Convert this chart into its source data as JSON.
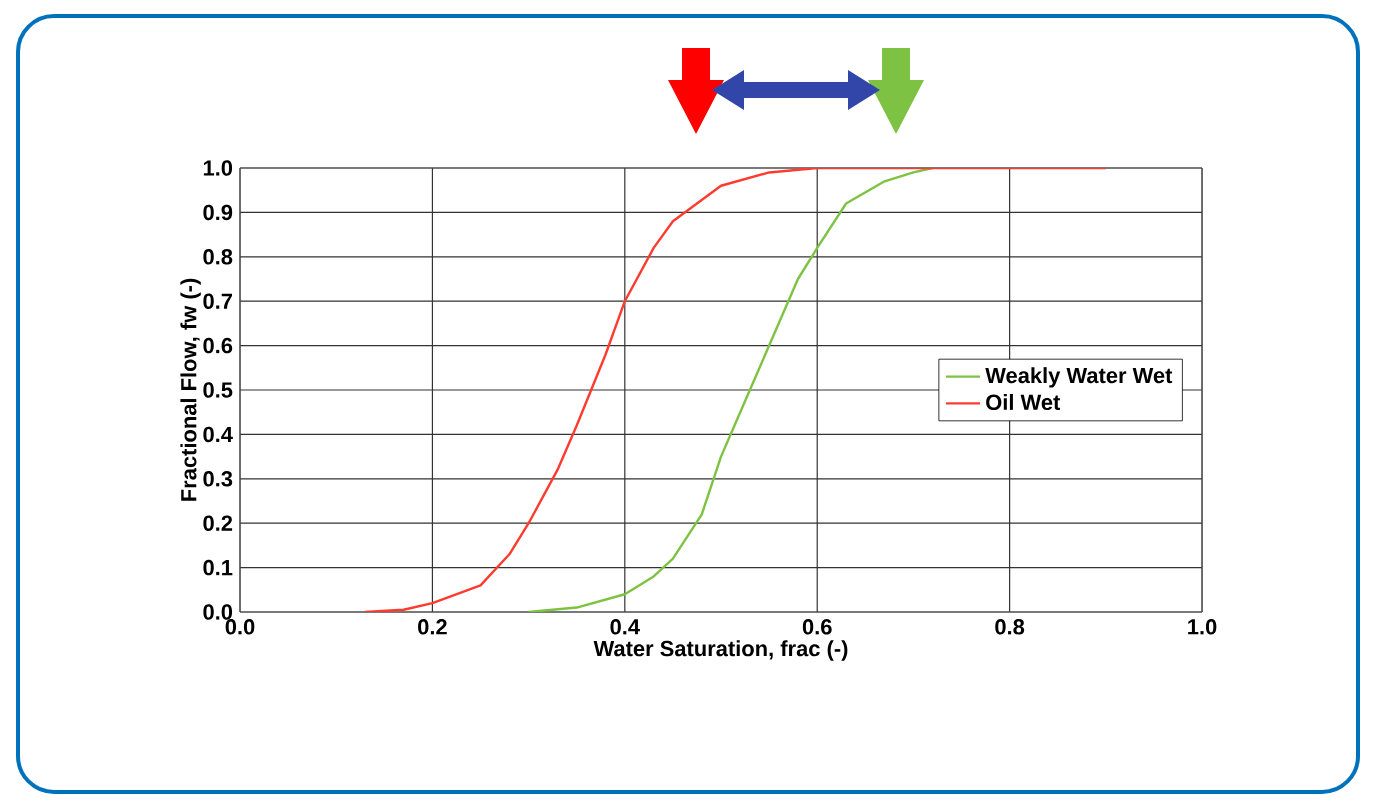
{
  "chart_data": {
    "type": "line",
    "xlabel": "Water Saturation, frac (-)",
    "ylabel": "Fractional Flow, fw (-)",
    "xlim": [
      0,
      1
    ],
    "ylim": [
      0,
      1
    ],
    "xticks": [
      {
        "value": 0,
        "label": "0.0"
      },
      {
        "value": 0.2,
        "label": "0.2"
      },
      {
        "value": 0.4,
        "label": "0.4"
      },
      {
        "value": 0.6,
        "label": "0.6"
      },
      {
        "value": 0.8,
        "label": "0.8"
      },
      {
        "value": 1,
        "label": "1.0"
      }
    ],
    "yticks": [
      {
        "value": 0,
        "label": "0.0"
      },
      {
        "value": 0.1,
        "label": "0.1"
      },
      {
        "value": 0.2,
        "label": "0.2"
      },
      {
        "value": 0.3,
        "label": "0.3"
      },
      {
        "value": 0.4,
        "label": "0.4"
      },
      {
        "value": 0.5,
        "label": "0.5"
      },
      {
        "value": 0.6,
        "label": "0.6"
      },
      {
        "value": 0.7,
        "label": "0.7"
      },
      {
        "value": 0.8,
        "label": "0.8"
      },
      {
        "value": 0.9,
        "label": "0.9"
      },
      {
        "value": 1,
        "label": "1.0"
      }
    ],
    "grid": true,
    "legend": "right",
    "marker": "none",
    "line_style": "solid",
    "series": [
      {
        "name": "Weakly Water Wet",
        "color": "#7dc242",
        "x": [
          0.3,
          0.35,
          0.4,
          0.43,
          0.45,
          0.48,
          0.5,
          0.53,
          0.55,
          0.58,
          0.6,
          0.63,
          0.67,
          0.7,
          0.72
        ],
        "values": [
          0,
          0.01,
          0.04,
          0.08,
          0.12,
          0.22,
          0.35,
          0.5,
          0.6,
          0.75,
          0.82,
          0.92,
          0.97,
          0.99,
          1.0
        ]
      },
      {
        "name": "Oil Wet",
        "color": "#ff3b2f",
        "x": [
          0.13,
          0.17,
          0.2,
          0.25,
          0.28,
          0.3,
          0.33,
          0.35,
          0.38,
          0.4,
          0.43,
          0.45,
          0.5,
          0.55,
          0.6,
          0.7,
          0.9
        ],
        "values": [
          0,
          0.005,
          0.02,
          0.06,
          0.13,
          0.2,
          0.32,
          0.42,
          0.58,
          0.7,
          0.82,
          0.88,
          0.96,
          0.99,
          1.0,
          1.0,
          1.0
        ]
      }
    ]
  }
}
